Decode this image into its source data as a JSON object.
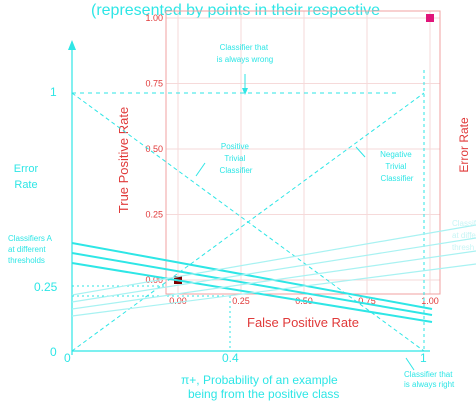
{
  "colors": {
    "cyan": "#2ee6e6",
    "cyan_light": "#a8f2f2",
    "red": "#e03a3a",
    "red_grid": "#f6dada",
    "magenta": "#e0157a",
    "dark_point": "#7a0000"
  },
  "header_text": "(represented by points in their respective",
  "cost_space": {
    "y_axis_label_line1": "Error",
    "y_axis_label_line2": "Rate",
    "right_axis_label": "Error Rate",
    "y_ticks": [
      "1",
      "0.25",
      "0"
    ],
    "x_ticks": [
      "0",
      "0.4",
      "1"
    ],
    "x_axis_label_line1": "π+, Probability of an example",
    "x_axis_label_line2": "being from the positive class",
    "annotations": {
      "classifier_a": [
        "Classifiers A",
        "at different",
        "thresholds"
      ],
      "always_wrong": [
        "Classifier that",
        "is always wrong"
      ],
      "positive_trivial": [
        "Positive",
        "Trivial",
        "Classifier"
      ],
      "negative_trivial": [
        "Negative",
        "Trivial",
        "Classifier"
      ],
      "always_right": [
        "Classifier that",
        "is always right"
      ]
    },
    "faint_right_labels": [
      "Classif",
      "at diffe",
      "thresh"
    ]
  },
  "chart_data": {
    "type": "scatter",
    "title": "",
    "xlabel": "False Positive Rate",
    "ylabel": "True Positive Rate",
    "xlim": [
      0,
      1
    ],
    "ylim": [
      0,
      1
    ],
    "x_ticks": [
      "0.00",
      "0.25",
      "0.50",
      "0.75",
      "1.00"
    ],
    "y_ticks": [
      "0.00",
      "0.25",
      "0.50",
      "0.75",
      "1.00"
    ],
    "grid": true,
    "points": [
      {
        "x": 0.0,
        "y": 0.0,
        "color": "#7a0000"
      },
      {
        "x": 1.0,
        "y": 1.0,
        "color": "#e0157a"
      }
    ]
  }
}
